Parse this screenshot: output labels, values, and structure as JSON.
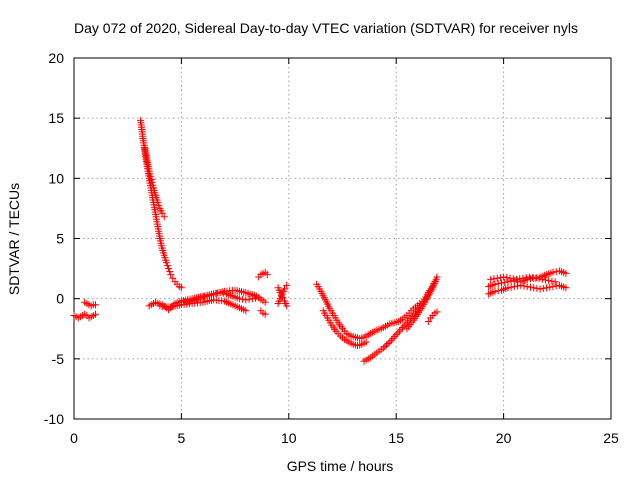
{
  "chart_data": {
    "type": "scatter",
    "title": "Day 072 of 2020, Sidereal Day-to-day VTEC variation (SDTVAR) for receiver nyls",
    "xlabel": "GPS time / hours",
    "ylabel": "SDTVAR / TECUs",
    "xlim": [
      0,
      25
    ],
    "ylim": [
      -10,
      20
    ],
    "xticks": [
      0,
      5,
      10,
      15,
      20,
      25
    ],
    "yticks": [
      -10,
      -5,
      0,
      5,
      10,
      15,
      20
    ],
    "xtick_labels": [
      "0",
      "5",
      "10",
      "15",
      "20",
      "25"
    ],
    "ytick_labels": [
      "-10",
      "-5",
      "0",
      "5",
      "10",
      "15",
      "20"
    ],
    "grid": true,
    "marker": "+",
    "color": "#ff0000",
    "series": [
      {
        "name": "SDTVAR",
        "segments": [
          {
            "x": [
              0.0,
              0.1,
              0.2,
              0.3,
              0.4,
              0.5,
              0.6,
              0.7,
              0.8,
              0.9,
              1.0
            ],
            "y": [
              -1.4,
              -1.5,
              -1.6,
              -1.5,
              -1.4,
              -1.3,
              -1.4,
              -1.6,
              -1.5,
              -1.4,
              -1.3
            ]
          },
          {
            "x": [
              0.5,
              0.6,
              0.7,
              0.8,
              0.9,
              1.0
            ],
            "y": [
              -0.3,
              -0.4,
              -0.5,
              -0.6,
              -0.5,
              -0.5
            ]
          },
          {
            "x": [
              3.1,
              3.2,
              3.3,
              3.4,
              3.5,
              3.6,
              3.7,
              3.8,
              3.9,
              4.0,
              4.1,
              4.2,
              4.3,
              4.4,
              4.5,
              4.6,
              4.7,
              4.8,
              4.9,
              5.0
            ],
            "y": [
              14.8,
              13.5,
              12.2,
              11.0,
              10.0,
              9.0,
              8.0,
              7.0,
              6.0,
              5.0,
              4.2,
              3.6,
              3.0,
              2.5,
              2.0,
              1.7,
              1.4,
              1.2,
              1.0,
              0.9
            ]
          },
          {
            "x": [
              3.3,
              3.4,
              3.5,
              3.6,
              3.7,
              3.8,
              3.9,
              4.0,
              4.1,
              4.2
            ],
            "y": [
              12.5,
              11.5,
              10.6,
              9.9,
              9.2,
              8.6,
              8.0,
              7.5,
              7.1,
              6.8
            ]
          },
          {
            "x": [
              3.5,
              3.8,
              4.1,
              4.4,
              4.7,
              5.0,
              5.3,
              5.6,
              5.9,
              6.2,
              6.5,
              6.8,
              7.1,
              7.4,
              7.7,
              8.0,
              8.3,
              8.6
            ],
            "y": [
              -0.6,
              -0.3,
              -0.5,
              -0.9,
              -0.4,
              -0.2,
              -0.3,
              -0.1,
              0.1,
              0.2,
              0.4,
              0.5,
              0.4,
              0.2,
              0.0,
              -0.1,
              0.0,
              0.1
            ]
          },
          {
            "x": [
              4.0,
              4.5,
              5.0,
              5.5,
              6.0,
              6.5,
              7.0,
              7.5,
              8.0
            ],
            "y": [
              -0.6,
              -0.7,
              -0.5,
              -0.4,
              -0.3,
              -0.1,
              -0.2,
              -0.6,
              -1.0
            ]
          },
          {
            "x": [
              5.0,
              5.5,
              6.0,
              6.5,
              7.0,
              7.5,
              8.0,
              8.5,
              8.9
            ],
            "y": [
              -0.2,
              0.0,
              0.2,
              0.4,
              0.6,
              0.7,
              0.5,
              0.2,
              -0.3
            ]
          },
          {
            "x": [
              8.6,
              8.7,
              8.8,
              8.9,
              9.0
            ],
            "y": [
              1.8,
              2.0,
              2.1,
              2.2,
              2.0
            ]
          },
          {
            "x": [
              8.7,
              8.8,
              8.9
            ],
            "y": [
              -1.0,
              -1.2,
              -1.3
            ]
          },
          {
            "x": [
              9.5,
              9.6,
              9.7,
              9.8,
              9.9
            ],
            "y": [
              0.9,
              0.5,
              0.1,
              -0.2,
              -0.6
            ]
          },
          {
            "x": [
              9.5,
              9.6,
              9.7,
              9.8,
              9.9
            ],
            "y": [
              -0.4,
              0.0,
              0.4,
              0.8,
              1.1
            ]
          },
          {
            "x": [
              11.3,
              11.5,
              11.7,
              11.9,
              12.1,
              12.3,
              12.5,
              12.7,
              12.9,
              13.1,
              13.3,
              13.5,
              13.7,
              13.9,
              14.1,
              14.3,
              14.5,
              14.7,
              14.9,
              15.1,
              15.3,
              15.5,
              15.7,
              15.9,
              16.1
            ],
            "y": [
              1.2,
              0.6,
              -0.1,
              -0.8,
              -1.4,
              -2.0,
              -2.5,
              -2.9,
              -3.1,
              -3.2,
              -3.3,
              -3.2,
              -3.0,
              -2.8,
              -2.6,
              -2.5,
              -2.3,
              -2.1,
              -2.0,
              -1.9,
              -1.7,
              -1.4,
              -1.0,
              -0.7,
              -0.4
            ]
          },
          {
            "x": [
              11.6,
              11.8,
              12.0,
              12.2,
              12.4,
              12.6,
              12.8,
              13.0,
              13.2,
              13.4,
              13.6
            ],
            "y": [
              -1.0,
              -1.6,
              -2.2,
              -2.7,
              -3.1,
              -3.4,
              -3.6,
              -3.8,
              -3.9,
              -3.8,
              -3.6
            ]
          },
          {
            "x": [
              13.5,
              13.8,
              14.1,
              14.4,
              14.7,
              15.0,
              15.3,
              15.6,
              15.9,
              16.2,
              16.5,
              16.8
            ],
            "y": [
              -5.2,
              -4.9,
              -4.5,
              -4.1,
              -3.6,
              -3.0,
              -2.4,
              -1.8,
              -1.2,
              -0.4,
              0.5,
              1.4
            ]
          },
          {
            "x": [
              15.5,
              15.8,
              16.1,
              16.4,
              16.7,
              16.9
            ],
            "y": [
              -2.5,
              -1.8,
              -1.0,
              -0.1,
              0.9,
              1.8
            ]
          },
          {
            "x": [
              16.5,
              16.6,
              16.7,
              16.8,
              16.9
            ],
            "y": [
              -1.9,
              -1.6,
              -1.4,
              -1.2,
              -1.1
            ]
          },
          {
            "x": [
              19.3,
              19.6,
              19.9,
              20.2,
              20.5,
              20.8,
              21.1,
              21.4,
              21.7,
              22.0,
              22.3,
              22.6,
              22.9
            ],
            "y": [
              1.0,
              1.2,
              1.3,
              1.4,
              1.5,
              1.4,
              1.6,
              1.7,
              1.8,
              2.0,
              2.2,
              2.3,
              2.1
            ]
          },
          {
            "x": [
              19.3,
              19.6,
              19.9,
              20.2,
              20.5,
              20.8,
              21.1,
              21.4,
              21.7,
              22.0,
              22.3,
              22.6,
              22.9
            ],
            "y": [
              0.4,
              0.6,
              0.7,
              0.9,
              1.0,
              1.1,
              1.0,
              0.9,
              0.8,
              0.9,
              1.0,
              1.1,
              0.9
            ]
          },
          {
            "x": [
              19.4,
              19.7,
              20.0,
              20.3,
              20.6,
              20.9,
              21.2,
              21.5,
              21.8,
              22.1,
              22.4
            ],
            "y": [
              1.6,
              1.7,
              1.8,
              1.7,
              1.6,
              1.7,
              1.8,
              1.7,
              1.6,
              1.5,
              1.4
            ]
          }
        ]
      }
    ]
  }
}
